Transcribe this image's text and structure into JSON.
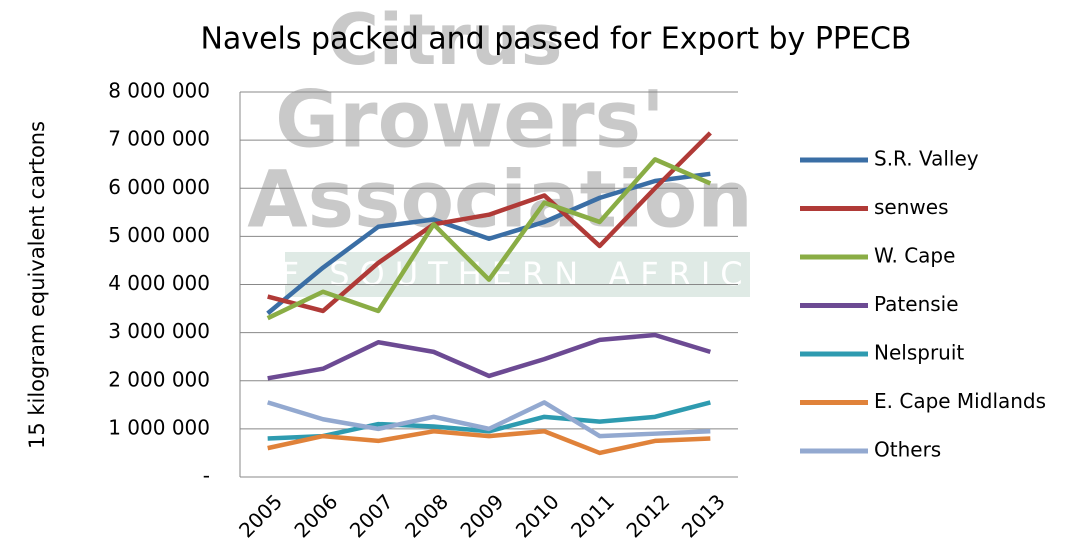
{
  "chart_data": {
    "type": "line",
    "title": "Navels packed and passed for Export by PPECB",
    "y_label": "15 kilogram equivalent cartons",
    "watermark": [
      "Citrus",
      "Growers'",
      "Association",
      "OF SOUTHERN AFRICA"
    ],
    "categories": [
      "2005",
      "2006",
      "2007",
      "2008",
      "2009",
      "2010",
      "2011",
      "2012",
      "2013"
    ],
    "ylim": [
      0,
      8000000
    ],
    "yticks": [
      {
        "value": 0,
        "label": "-"
      },
      {
        "value": 1000000,
        "label": "1 000 000"
      },
      {
        "value": 2000000,
        "label": "2 000 000"
      },
      {
        "value": 3000000,
        "label": "3 000 000"
      },
      {
        "value": 4000000,
        "label": "4 000 000"
      },
      {
        "value": 5000000,
        "label": "5 000 000"
      },
      {
        "value": 6000000,
        "label": "6 000 000"
      },
      {
        "value": 7000000,
        "label": "7 000 000"
      },
      {
        "value": 8000000,
        "label": "8 000 000"
      }
    ],
    "grid": true,
    "legend": "right",
    "series": [
      {
        "name": "S.R. Valley",
        "color": "#3a6ea5",
        "values": [
          3400000,
          4350000,
          5200000,
          5350000,
          4950000,
          5300000,
          5800000,
          6150000,
          6300000
        ]
      },
      {
        "name": "senwes",
        "color": "#b03a37",
        "values": [
          3750000,
          3450000,
          4450000,
          5250000,
          5450000,
          5850000,
          4800000,
          6000000,
          7150000
        ]
      },
      {
        "name": "W. Cape",
        "color": "#8aad45",
        "values": [
          3300000,
          3850000,
          3450000,
          5250000,
          4100000,
          5700000,
          5300000,
          6600000,
          6100000
        ]
      },
      {
        "name": "Patensie",
        "color": "#6c4a93",
        "values": [
          2050000,
          2250000,
          2800000,
          2600000,
          2100000,
          2450000,
          2850000,
          2950000,
          2600000
        ]
      },
      {
        "name": "Nelspruit",
        "color": "#2e9bb0",
        "values": [
          800000,
          850000,
          1100000,
          1050000,
          950000,
          1250000,
          1150000,
          1250000,
          1550000
        ]
      },
      {
        "name": "E. Cape Midlands",
        "color": "#e0823a",
        "values": [
          600000,
          850000,
          750000,
          950000,
          850000,
          950000,
          500000,
          750000,
          800000
        ]
      },
      {
        "name": "Others",
        "color": "#93a9d0",
        "values": [
          1550000,
          1200000,
          1000000,
          1250000,
          1000000,
          1550000,
          850000,
          900000,
          950000
        ]
      }
    ]
  }
}
